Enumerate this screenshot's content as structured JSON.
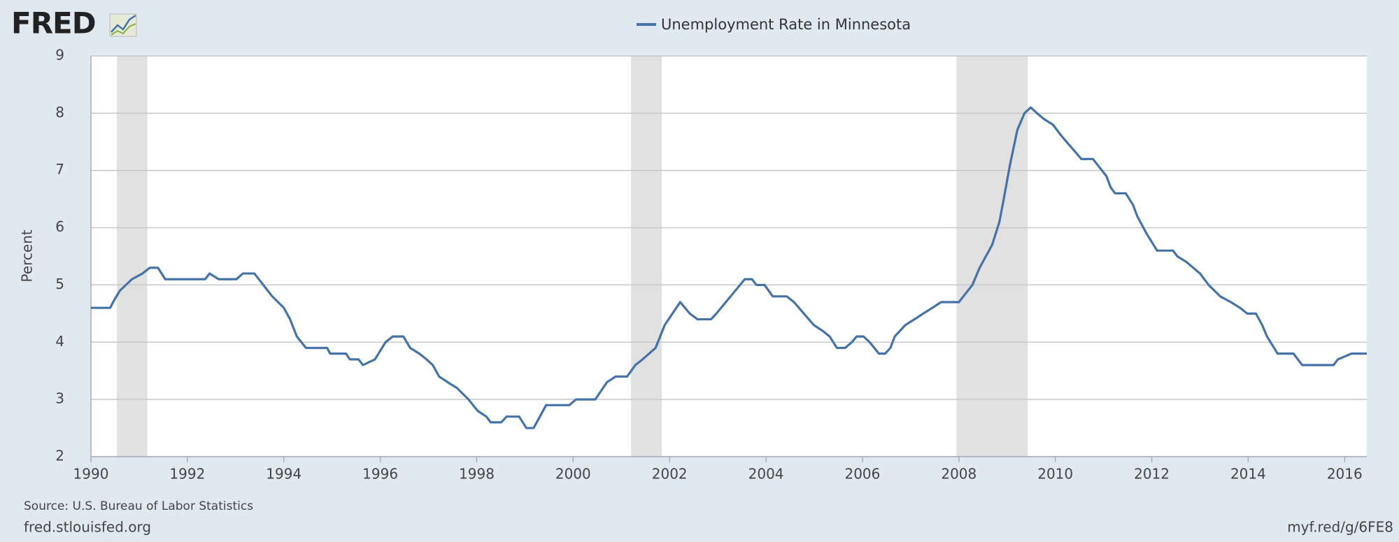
{
  "header": {
    "logo": "FRED"
  },
  "chart_data": {
    "type": "line",
    "y_label": "Percent",
    "x": [
      1990.0,
      1990.4,
      1990.46,
      1990.6,
      1990.85,
      1991.07,
      1991.22,
      1991.39,
      1991.54,
      1992.37,
      1992.46,
      1992.65,
      1993.02,
      1993.15,
      1993.39,
      1993.76,
      1994.0,
      1994.13,
      1994.27,
      1994.46,
      1994.9,
      1994.96,
      1995.29,
      1995.37,
      1995.55,
      1995.64,
      1995.89,
      1996.11,
      1996.26,
      1996.48,
      1996.62,
      1996.81,
      1996.96,
      1997.09,
      1997.22,
      1997.4,
      1997.59,
      1997.83,
      1998.02,
      1998.2,
      1998.29,
      1998.51,
      1998.62,
      1998.88,
      1999.03,
      1999.18,
      1999.31,
      1999.44,
      1999.92,
      2000.06,
      2000.46,
      2000.7,
      2000.88,
      2001.12,
      2001.29,
      2001.44,
      2001.71,
      2001.9,
      2002.22,
      2002.42,
      2002.58,
      2002.86,
      2002.97,
      2003.56,
      2003.71,
      2003.8,
      2003.97,
      2004.14,
      2004.43,
      2004.58,
      2004.99,
      2005.17,
      2005.32,
      2005.47,
      2005.64,
      2005.78,
      2005.88,
      2006.02,
      2006.15,
      2006.34,
      2006.47,
      2006.58,
      2006.67,
      2006.89,
      2007.08,
      2007.26,
      2007.45,
      2007.63,
      2008.0,
      2008.28,
      2008.43,
      2008.56,
      2008.69,
      2008.84,
      2008.93,
      2009.06,
      2009.21,
      2009.36,
      2009.49,
      2009.62,
      2009.76,
      2009.95,
      2010.13,
      2010.54,
      2010.78,
      2011.06,
      2011.15,
      2011.24,
      2011.46,
      2011.61,
      2011.7,
      2011.89,
      2012.11,
      2012.44,
      2012.53,
      2012.72,
      2013.0,
      2013.18,
      2013.42,
      2013.64,
      2013.83,
      2013.98,
      2014.16,
      2014.29,
      2014.39,
      2014.61,
      2014.94,
      2015.12,
      2015.77,
      2015.86,
      2016.14,
      2016.46
    ],
    "series": [
      {
        "name": "Unemployment Rate in Minnesota",
        "color": "#4572a7",
        "values": [
          4.6,
          4.6,
          4.7,
          4.9,
          5.1,
          5.2,
          5.3,
          5.3,
          5.1,
          5.1,
          5.2,
          5.1,
          5.1,
          5.2,
          5.2,
          4.8,
          4.6,
          4.4,
          4.1,
          3.9,
          3.9,
          3.8,
          3.8,
          3.7,
          3.7,
          3.6,
          3.7,
          4.0,
          4.1,
          4.1,
          3.9,
          3.8,
          3.7,
          3.6,
          3.4,
          3.3,
          3.2,
          3.0,
          2.8,
          2.7,
          2.6,
          2.6,
          2.7,
          2.7,
          2.5,
          2.5,
          2.7,
          2.9,
          2.9,
          3.0,
          3.0,
          3.3,
          3.4,
          3.4,
          3.6,
          3.7,
          3.9,
          4.3,
          4.7,
          4.5,
          4.4,
          4.4,
          4.5,
          5.1,
          5.1,
          5.0,
          5.0,
          4.8,
          4.8,
          4.7,
          4.3,
          4.2,
          4.1,
          3.9,
          3.9,
          4.0,
          4.1,
          4.1,
          4.0,
          3.8,
          3.8,
          3.9,
          4.1,
          4.3,
          4.4,
          4.5,
          4.6,
          4.7,
          4.7,
          5.0,
          5.3,
          5.5,
          5.7,
          6.1,
          6.5,
          7.1,
          7.7,
          8.0,
          8.1,
          8.0,
          7.9,
          7.8,
          7.6,
          7.2,
          7.2,
          6.9,
          6.7,
          6.6,
          6.6,
          6.4,
          6.2,
          5.9,
          5.6,
          5.6,
          5.5,
          5.4,
          5.2,
          5.0,
          4.8,
          4.7,
          4.6,
          4.5,
          4.5,
          4.3,
          4.1,
          3.8,
          3.8,
          3.6,
          3.6,
          3.7,
          3.8,
          3.8
        ]
      }
    ],
    "recessions": [
      [
        1990.54,
        1991.17
      ],
      [
        2001.2,
        2001.84
      ],
      [
        2007.95,
        2009.43
      ]
    ],
    "recession_color": "#e1e1e1",
    "xlim": [
      1990,
      2016.46
    ],
    "xticks": [
      1990,
      1992,
      1994,
      1996,
      1998,
      2000,
      2002,
      2004,
      2006,
      2008,
      2010,
      2012,
      2014,
      2016
    ],
    "ylim": [
      2,
      9
    ],
    "yticks": [
      2,
      3,
      4,
      5,
      6,
      7,
      8,
      9
    ],
    "grid": true
  },
  "footer": {
    "source": "Source: U.S. Bureau of Labor Statistics",
    "site": "fred.stlouisfed.org",
    "link": "myf.red/g/6FE8"
  }
}
